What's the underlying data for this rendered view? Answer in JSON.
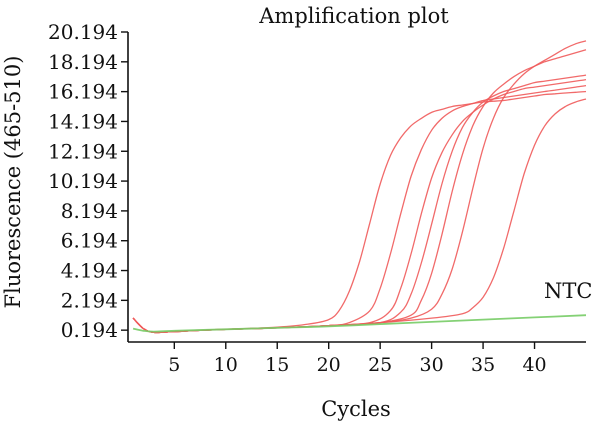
{
  "chart_data": {
    "type": "line",
    "title": "Amplification plot",
    "xlabel": "Cycles",
    "ylabel": "Fluorescence (465-510)",
    "xlim": [
      0.5,
      45
    ],
    "ylim": [
      -0.6,
      20.194
    ],
    "x_ticks": [
      5,
      10,
      15,
      20,
      25,
      30,
      35,
      40
    ],
    "y_ticks": [
      0.194,
      2.194,
      4.194,
      6.194,
      8.194,
      10.194,
      12.194,
      14.194,
      16.194,
      18.194,
      20.194
    ],
    "y_tick_labels": [
      "0.194",
      "2.194",
      "4.194",
      "6.194",
      "8.194",
      "10.194",
      "12.194",
      "14.194",
      "16.194",
      "18.194",
      "20.194"
    ],
    "annotation": "NTC",
    "grid": false,
    "series": [
      {
        "group": "sample",
        "color": "#f05a5a",
        "x": [
          1,
          2,
          3,
          5,
          8,
          10,
          15,
          18,
          20,
          21,
          22,
          23,
          24,
          25,
          26,
          27,
          28,
          29,
          30,
          31,
          32,
          33,
          34,
          35,
          36,
          37,
          38,
          39,
          40,
          41,
          42,
          43,
          44,
          45
        ],
        "y": [
          1.0,
          0.3,
          0.05,
          0.1,
          0.2,
          0.25,
          0.4,
          0.6,
          0.9,
          1.5,
          2.8,
          4.8,
          7.4,
          10.0,
          11.9,
          13.1,
          13.9,
          14.4,
          14.8,
          15.0,
          15.2,
          15.3,
          15.4,
          15.5,
          15.55,
          15.6,
          15.7,
          15.8,
          15.9,
          16.0,
          16.05,
          16.1,
          16.15,
          16.2
        ]
      },
      {
        "group": "sample",
        "color": "#f05a5a",
        "x": [
          1,
          2,
          3,
          5,
          8,
          10,
          15,
          20,
          22,
          24,
          25,
          26,
          27,
          28,
          29,
          30,
          31,
          32,
          33,
          34,
          35,
          36,
          37,
          38,
          39,
          40,
          41,
          42,
          43,
          44,
          45
        ],
        "y": [
          1.0,
          0.3,
          0.05,
          0.1,
          0.2,
          0.25,
          0.35,
          0.5,
          0.7,
          1.5,
          3.0,
          5.3,
          8.0,
          10.5,
          12.3,
          13.6,
          14.4,
          14.9,
          15.2,
          15.4,
          15.6,
          15.7,
          15.8,
          15.9,
          16.0,
          16.1,
          16.2,
          16.3,
          16.4,
          16.5,
          16.6
        ]
      },
      {
        "group": "sample",
        "color": "#f05a5a",
        "x": [
          1,
          2,
          3,
          5,
          8,
          10,
          15,
          20,
          24,
          26,
          27,
          28,
          29,
          30,
          31,
          32,
          33,
          34,
          35,
          36,
          37,
          38,
          39,
          40,
          41,
          42,
          43,
          44,
          45
        ],
        "y": [
          1.0,
          0.3,
          0.05,
          0.1,
          0.2,
          0.25,
          0.35,
          0.5,
          0.7,
          1.5,
          3.0,
          5.3,
          8.0,
          10.4,
          12.1,
          13.3,
          14.2,
          14.8,
          15.3,
          15.7,
          16.0,
          16.2,
          16.4,
          16.5,
          16.6,
          16.7,
          16.8,
          16.9,
          17.0
        ]
      },
      {
        "group": "sample",
        "color": "#f05a5a",
        "x": [
          1,
          2,
          3,
          5,
          8,
          10,
          15,
          20,
          25,
          27,
          28,
          29,
          30,
          31,
          32,
          33,
          34,
          35,
          36,
          37,
          38,
          39,
          40,
          41,
          42,
          43,
          44,
          45
        ],
        "y": [
          1.0,
          0.3,
          0.05,
          0.1,
          0.2,
          0.25,
          0.35,
          0.5,
          0.7,
          1.4,
          2.6,
          4.7,
          7.3,
          10.0,
          12.2,
          13.8,
          14.8,
          15.5,
          15.9,
          16.2,
          16.4,
          16.6,
          16.8,
          16.9,
          17.0,
          17.1,
          17.2,
          17.3
        ]
      },
      {
        "group": "sample",
        "color": "#f05a5a",
        "x": [
          1,
          2,
          3,
          5,
          8,
          10,
          15,
          20,
          25,
          28,
          29,
          30,
          31,
          32,
          33,
          34,
          35,
          36,
          37,
          38,
          39,
          40,
          41,
          42,
          43,
          44,
          45
        ],
        "y": [
          1.0,
          0.3,
          0.05,
          0.1,
          0.2,
          0.25,
          0.35,
          0.5,
          0.7,
          1.2,
          2.2,
          4.0,
          6.6,
          9.5,
          12.0,
          13.9,
          15.2,
          16.1,
          16.7,
          17.2,
          17.6,
          17.9,
          18.2,
          18.4,
          18.6,
          18.8,
          19.0
        ]
      },
      {
        "group": "sample",
        "color": "#f05a5a",
        "x": [
          1,
          2,
          3,
          5,
          8,
          10,
          15,
          20,
          25,
          28,
          30,
          31,
          32,
          33,
          34,
          35,
          36,
          37,
          38,
          39,
          40,
          41,
          42,
          43,
          44,
          45
        ],
        "y": [
          1.0,
          0.3,
          0.05,
          0.1,
          0.2,
          0.25,
          0.35,
          0.5,
          0.7,
          1.0,
          1.6,
          2.6,
          4.3,
          6.8,
          9.7,
          12.4,
          14.4,
          15.8,
          16.7,
          17.4,
          17.9,
          18.3,
          18.7,
          19.1,
          19.4,
          19.6
        ]
      },
      {
        "group": "sample",
        "color": "#f05a5a",
        "x": [
          1,
          2,
          3,
          5,
          8,
          10,
          15,
          20,
          25,
          30,
          33,
          34,
          35,
          36,
          37,
          38,
          39,
          40,
          41,
          42,
          43,
          44,
          45
        ],
        "y": [
          1.0,
          0.3,
          0.05,
          0.1,
          0.2,
          0.25,
          0.35,
          0.5,
          0.7,
          1.0,
          1.3,
          1.7,
          2.4,
          3.7,
          5.7,
          8.2,
          10.7,
          12.6,
          13.9,
          14.7,
          15.2,
          15.5,
          15.7
        ]
      },
      {
        "group": "NTC",
        "name": "NTC",
        "color": "#77cc66",
        "x": [
          1,
          2,
          3,
          5,
          10,
          15,
          20,
          25,
          30,
          35,
          40,
          45
        ],
        "y": [
          0.3,
          0.15,
          0.1,
          0.15,
          0.25,
          0.35,
          0.45,
          0.6,
          0.75,
          0.9,
          1.05,
          1.2
        ]
      }
    ]
  }
}
